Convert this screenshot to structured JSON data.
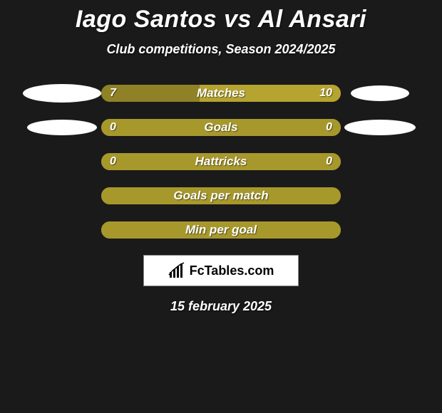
{
  "title": "Iago Santos vs Al Ansari",
  "subtitle": "Club competitions, Season 2024/2025",
  "date": "15 february 2025",
  "brand": "FcTables.com",
  "colors": {
    "background": "#1a1a1a",
    "bar_left": "#a7982c",
    "bar_right": "#a7982c",
    "bar_empty": "#a7982c",
    "bubble": "#ffffff",
    "text": "#ffffff"
  },
  "rows": [
    {
      "label": "Matches",
      "left_val": "7",
      "right_val": "10",
      "left_pct": 41,
      "right_pct": 59,
      "show_left_bubble": true,
      "show_right_bubble": true,
      "left_bubble_w": 110,
      "left_bubble_h": 26,
      "right_bubble_w": 82,
      "right_bubble_h": 22,
      "left_color": "#8f8226",
      "right_color": "#b5a430"
    },
    {
      "label": "Goals",
      "left_val": "0",
      "right_val": "0",
      "left_pct": 50,
      "right_pct": 50,
      "show_left_bubble": true,
      "show_right_bubble": true,
      "left_bubble_w": 98,
      "left_bubble_h": 22,
      "right_bubble_w": 100,
      "right_bubble_h": 22,
      "left_color": "#a7982c",
      "right_color": "#a7982c"
    },
    {
      "label": "Hattricks",
      "left_val": "0",
      "right_val": "0",
      "left_pct": 50,
      "right_pct": 50,
      "show_left_bubble": false,
      "show_right_bubble": false,
      "left_color": "#a7982c",
      "right_color": "#a7982c"
    },
    {
      "label": "Goals per match",
      "left_val": "",
      "right_val": "",
      "left_pct": 50,
      "right_pct": 50,
      "show_left_bubble": false,
      "show_right_bubble": false,
      "left_color": "#a7982c",
      "right_color": "#a7982c"
    },
    {
      "label": "Min per goal",
      "left_val": "",
      "right_val": "",
      "left_pct": 50,
      "right_pct": 50,
      "show_left_bubble": false,
      "show_right_bubble": false,
      "left_color": "#a7982c",
      "right_color": "#a7982c"
    }
  ]
}
